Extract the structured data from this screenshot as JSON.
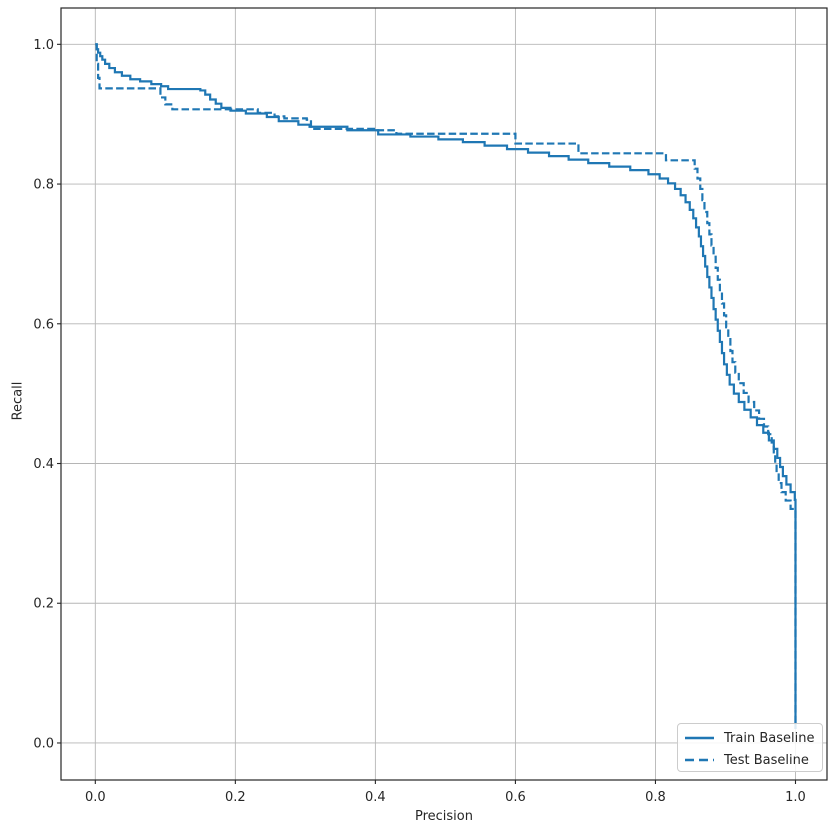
{
  "chart_data": {
    "type": "line",
    "title": "",
    "xlabel": "Precision",
    "ylabel": "Recall",
    "xlim": [
      -0.049,
      1.045
    ],
    "ylim": [
      -0.053,
      1.052
    ],
    "xticks": [
      0.0,
      0.2,
      0.4,
      0.6,
      0.8,
      1.0
    ],
    "yticks": [
      0.0,
      0.2,
      0.4,
      0.6,
      0.8,
      1.0
    ],
    "tick_decimals": 1,
    "grid": true,
    "legend_position": "lower right",
    "colors": {
      "line": "#1f77b4",
      "grid": "#b5b5b5",
      "spine": "#262626",
      "text": "#262626",
      "legend_border": "#cccccc",
      "legend_bg": "#ffffff"
    },
    "series": [
      {
        "name": "Train Baseline",
        "style": "solid",
        "points": [
          [
            0.0,
            1.0
          ],
          [
            0.002,
            0.993
          ],
          [
            0.004,
            0.988
          ],
          [
            0.007,
            0.983
          ],
          [
            0.01,
            0.978
          ],
          [
            0.014,
            0.972
          ],
          [
            0.02,
            0.966
          ],
          [
            0.028,
            0.96
          ],
          [
            0.038,
            0.955
          ],
          [
            0.05,
            0.95
          ],
          [
            0.064,
            0.947
          ],
          [
            0.08,
            0.943
          ],
          [
            0.094,
            0.94
          ],
          [
            0.104,
            0.936
          ],
          [
            0.15,
            0.934
          ],
          [
            0.157,
            0.928
          ],
          [
            0.164,
            0.921
          ],
          [
            0.172,
            0.915
          ],
          [
            0.18,
            0.909
          ],
          [
            0.193,
            0.905
          ],
          [
            0.215,
            0.901
          ],
          [
            0.245,
            0.896
          ],
          [
            0.262,
            0.89
          ],
          [
            0.29,
            0.885
          ],
          [
            0.306,
            0.882
          ],
          [
            0.36,
            0.877
          ],
          [
            0.404,
            0.871
          ],
          [
            0.45,
            0.868
          ],
          [
            0.49,
            0.864
          ],
          [
            0.525,
            0.86
          ],
          [
            0.556,
            0.855
          ],
          [
            0.588,
            0.85
          ],
          [
            0.618,
            0.845
          ],
          [
            0.648,
            0.84
          ],
          [
            0.676,
            0.835
          ],
          [
            0.704,
            0.83
          ],
          [
            0.734,
            0.825
          ],
          [
            0.764,
            0.82
          ],
          [
            0.79,
            0.814
          ],
          [
            0.806,
            0.808
          ],
          [
            0.818,
            0.801
          ],
          [
            0.828,
            0.793
          ],
          [
            0.836,
            0.784
          ],
          [
            0.843,
            0.774
          ],
          [
            0.849,
            0.763
          ],
          [
            0.854,
            0.751
          ],
          [
            0.858,
            0.738
          ],
          [
            0.862,
            0.725
          ],
          [
            0.865,
            0.711
          ],
          [
            0.868,
            0.697
          ],
          [
            0.871,
            0.682
          ],
          [
            0.874,
            0.667
          ],
          [
            0.877,
            0.652
          ],
          [
            0.88,
            0.637
          ],
          [
            0.883,
            0.621
          ],
          [
            0.886,
            0.606
          ],
          [
            0.889,
            0.59
          ],
          [
            0.892,
            0.574
          ],
          [
            0.895,
            0.558
          ],
          [
            0.898,
            0.542
          ],
          [
            0.902,
            0.527
          ],
          [
            0.906,
            0.513
          ],
          [
            0.912,
            0.5
          ],
          [
            0.919,
            0.488
          ],
          [
            0.927,
            0.477
          ],
          [
            0.936,
            0.466
          ],
          [
            0.945,
            0.455
          ],
          [
            0.954,
            0.444
          ],
          [
            0.962,
            0.433
          ],
          [
            0.969,
            0.421
          ],
          [
            0.974,
            0.408
          ],
          [
            0.978,
            0.395
          ],
          [
            0.982,
            0.382
          ],
          [
            0.987,
            0.37
          ],
          [
            0.993,
            0.359
          ],
          [
            0.999,
            0.348
          ],
          [
            1.0,
            0.02
          ]
        ]
      },
      {
        "name": "Test Baseline",
        "style": "dashed",
        "points": [
          [
            0.0,
            1.0
          ],
          [
            0.002,
            0.972
          ],
          [
            0.004,
            0.952
          ],
          [
            0.006,
            0.937
          ],
          [
            0.088,
            0.937
          ],
          [
            0.093,
            0.924
          ],
          [
            0.1,
            0.914
          ],
          [
            0.11,
            0.907
          ],
          [
            0.218,
            0.907
          ],
          [
            0.232,
            0.902
          ],
          [
            0.256,
            0.897
          ],
          [
            0.27,
            0.894
          ],
          [
            0.302,
            0.892
          ],
          [
            0.308,
            0.879
          ],
          [
            0.398,
            0.877
          ],
          [
            0.43,
            0.872
          ],
          [
            0.592,
            0.872
          ],
          [
            0.6,
            0.858
          ],
          [
            0.682,
            0.858
          ],
          [
            0.69,
            0.844
          ],
          [
            0.81,
            0.844
          ],
          [
            0.815,
            0.834
          ],
          [
            0.85,
            0.834
          ],
          [
            0.856,
            0.822
          ],
          [
            0.86,
            0.808
          ],
          [
            0.864,
            0.793
          ],
          [
            0.867,
            0.777
          ],
          [
            0.87,
            0.76
          ],
          [
            0.874,
            0.744
          ],
          [
            0.877,
            0.728
          ],
          [
            0.88,
            0.712
          ],
          [
            0.883,
            0.696
          ],
          [
            0.886,
            0.68
          ],
          [
            0.889,
            0.663
          ],
          [
            0.892,
            0.646
          ],
          [
            0.895,
            0.629
          ],
          [
            0.898,
            0.612
          ],
          [
            0.901,
            0.595
          ],
          [
            0.904,
            0.578
          ],
          [
            0.907,
            0.561
          ],
          [
            0.91,
            0.545
          ],
          [
            0.914,
            0.53
          ],
          [
            0.919,
            0.515
          ],
          [
            0.926,
            0.501
          ],
          [
            0.933,
            0.488
          ],
          [
            0.941,
            0.476
          ],
          [
            0.948,
            0.464
          ],
          [
            0.955,
            0.453
          ],
          [
            0.961,
            0.442
          ],
          [
            0.966,
            0.43
          ],
          [
            0.969,
            0.416
          ],
          [
            0.971,
            0.401
          ],
          [
            0.973,
            0.386
          ],
          [
            0.976,
            0.372
          ],
          [
            0.98,
            0.359
          ],
          [
            0.986,
            0.347
          ],
          [
            0.993,
            0.335
          ],
          [
            1.0,
            0.25
          ],
          [
            1.0,
            0.02
          ]
        ]
      }
    ]
  }
}
